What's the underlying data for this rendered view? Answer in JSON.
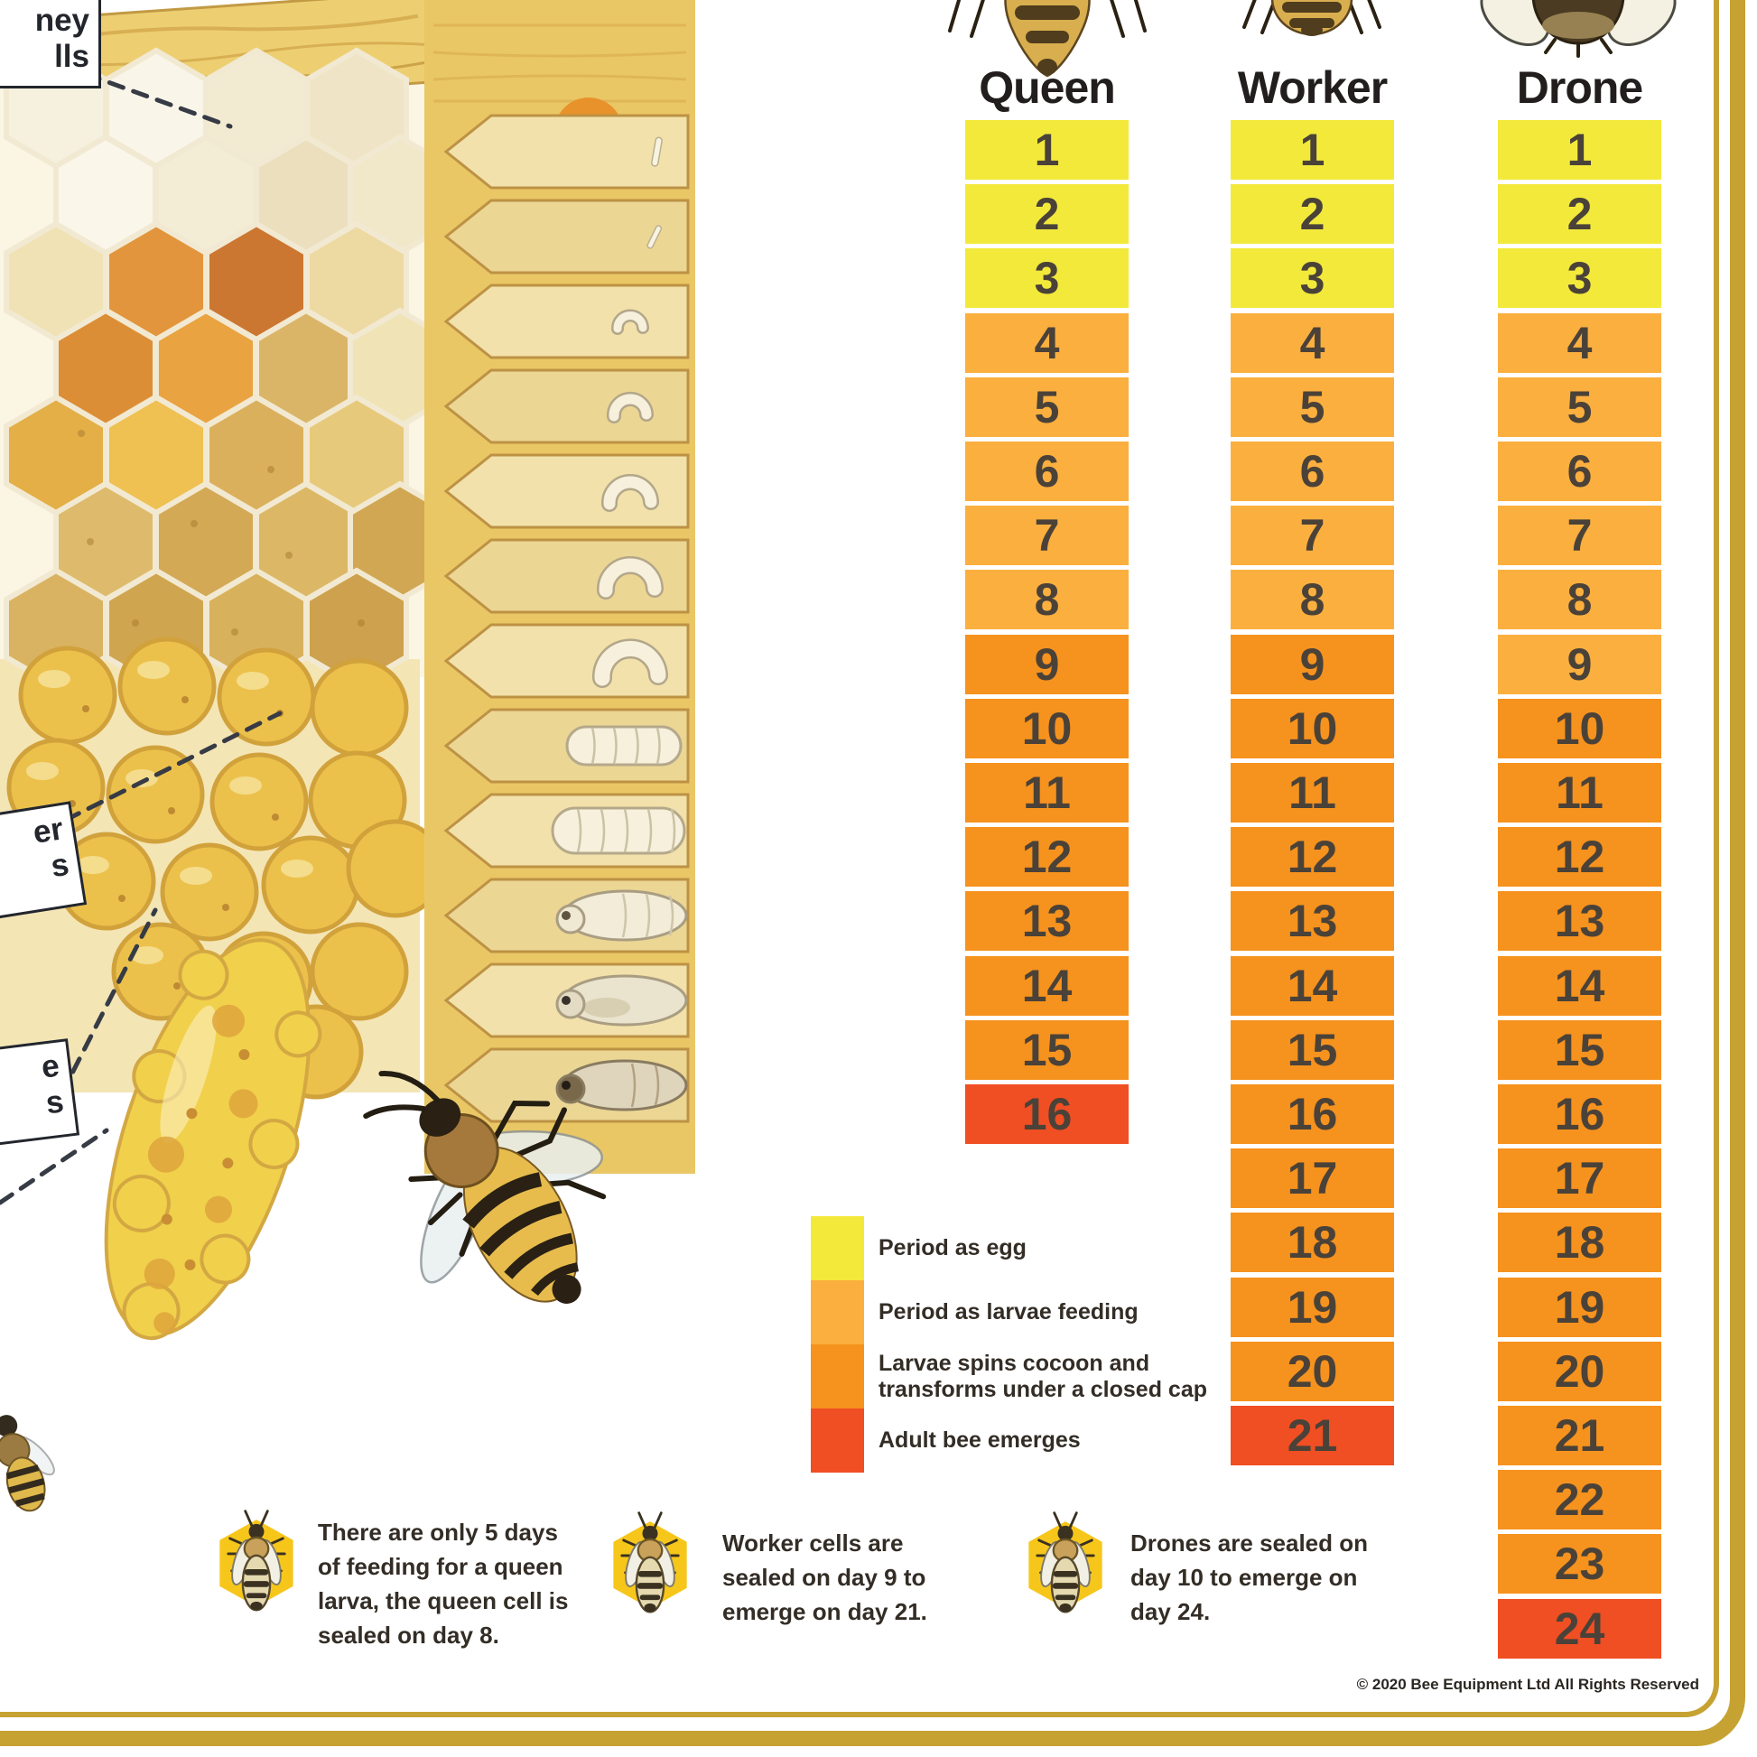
{
  "poster": {
    "copyright": "© 2020 Bee Equipment Ltd All Rights Reserved",
    "border_gold": "#C6A233",
    "hexagon_icon_yellow": "#F6C61B"
  },
  "stage_colors": {
    "egg": "#F3E93B",
    "feeding": "#FBAF3F",
    "cocoon": "#F6921E",
    "emerge": "#F04E23"
  },
  "chart_data": {
    "type": "table",
    "title": "Honey bee development timeline in days for queen, worker and drone",
    "columns": [
      {
        "label": "Queen",
        "total_days": 16,
        "stages": {
          "egg": [
            1,
            3
          ],
          "feeding": [
            4,
            8
          ],
          "cocoon": [
            9,
            15
          ],
          "emerge": [
            16,
            16
          ]
        }
      },
      {
        "label": "Worker",
        "total_days": 21,
        "stages": {
          "egg": [
            1,
            3
          ],
          "feeding": [
            4,
            8
          ],
          "cocoon": [
            9,
            20
          ],
          "emerge": [
            21,
            21
          ]
        }
      },
      {
        "label": "Drone",
        "total_days": 24,
        "stages": {
          "egg": [
            1,
            3
          ],
          "feeding": [
            4,
            9
          ],
          "cocoon": [
            10,
            23
          ],
          "emerge": [
            24,
            24
          ]
        }
      }
    ]
  },
  "legend": [
    {
      "stage": "egg",
      "label": "Period as egg"
    },
    {
      "stage": "feeding",
      "label": "Period as larvae feeding"
    },
    {
      "stage": "cocoon",
      "label": "Larvae spins cocoon and\ntransforms under a closed cap"
    },
    {
      "stage": "emerge",
      "label": "Adult bee emerges"
    }
  ],
  "captions": [
    {
      "text": "There are only 5 days\nof feeding for a queen\nlarva, the queen cell is\nsealed on day 8."
    },
    {
      "text": "Worker cells are\nsealed on day 9 to\nemerge on day 21."
    },
    {
      "text": "Drones are sealed on\nday 10 to emerge on\nday 24."
    }
  ],
  "comb_labels": [
    {
      "line1": "ney",
      "line2": "lls"
    },
    {
      "line1": "er",
      "line2": "s"
    },
    {
      "line1": "e",
      "line2": "s"
    }
  ],
  "icons": {
    "caption_icon": "bee-on-hexagon-icon",
    "top_row": [
      "queen-bee-icon",
      "worker-bee-icon",
      "drone-bee-icon"
    ]
  }
}
